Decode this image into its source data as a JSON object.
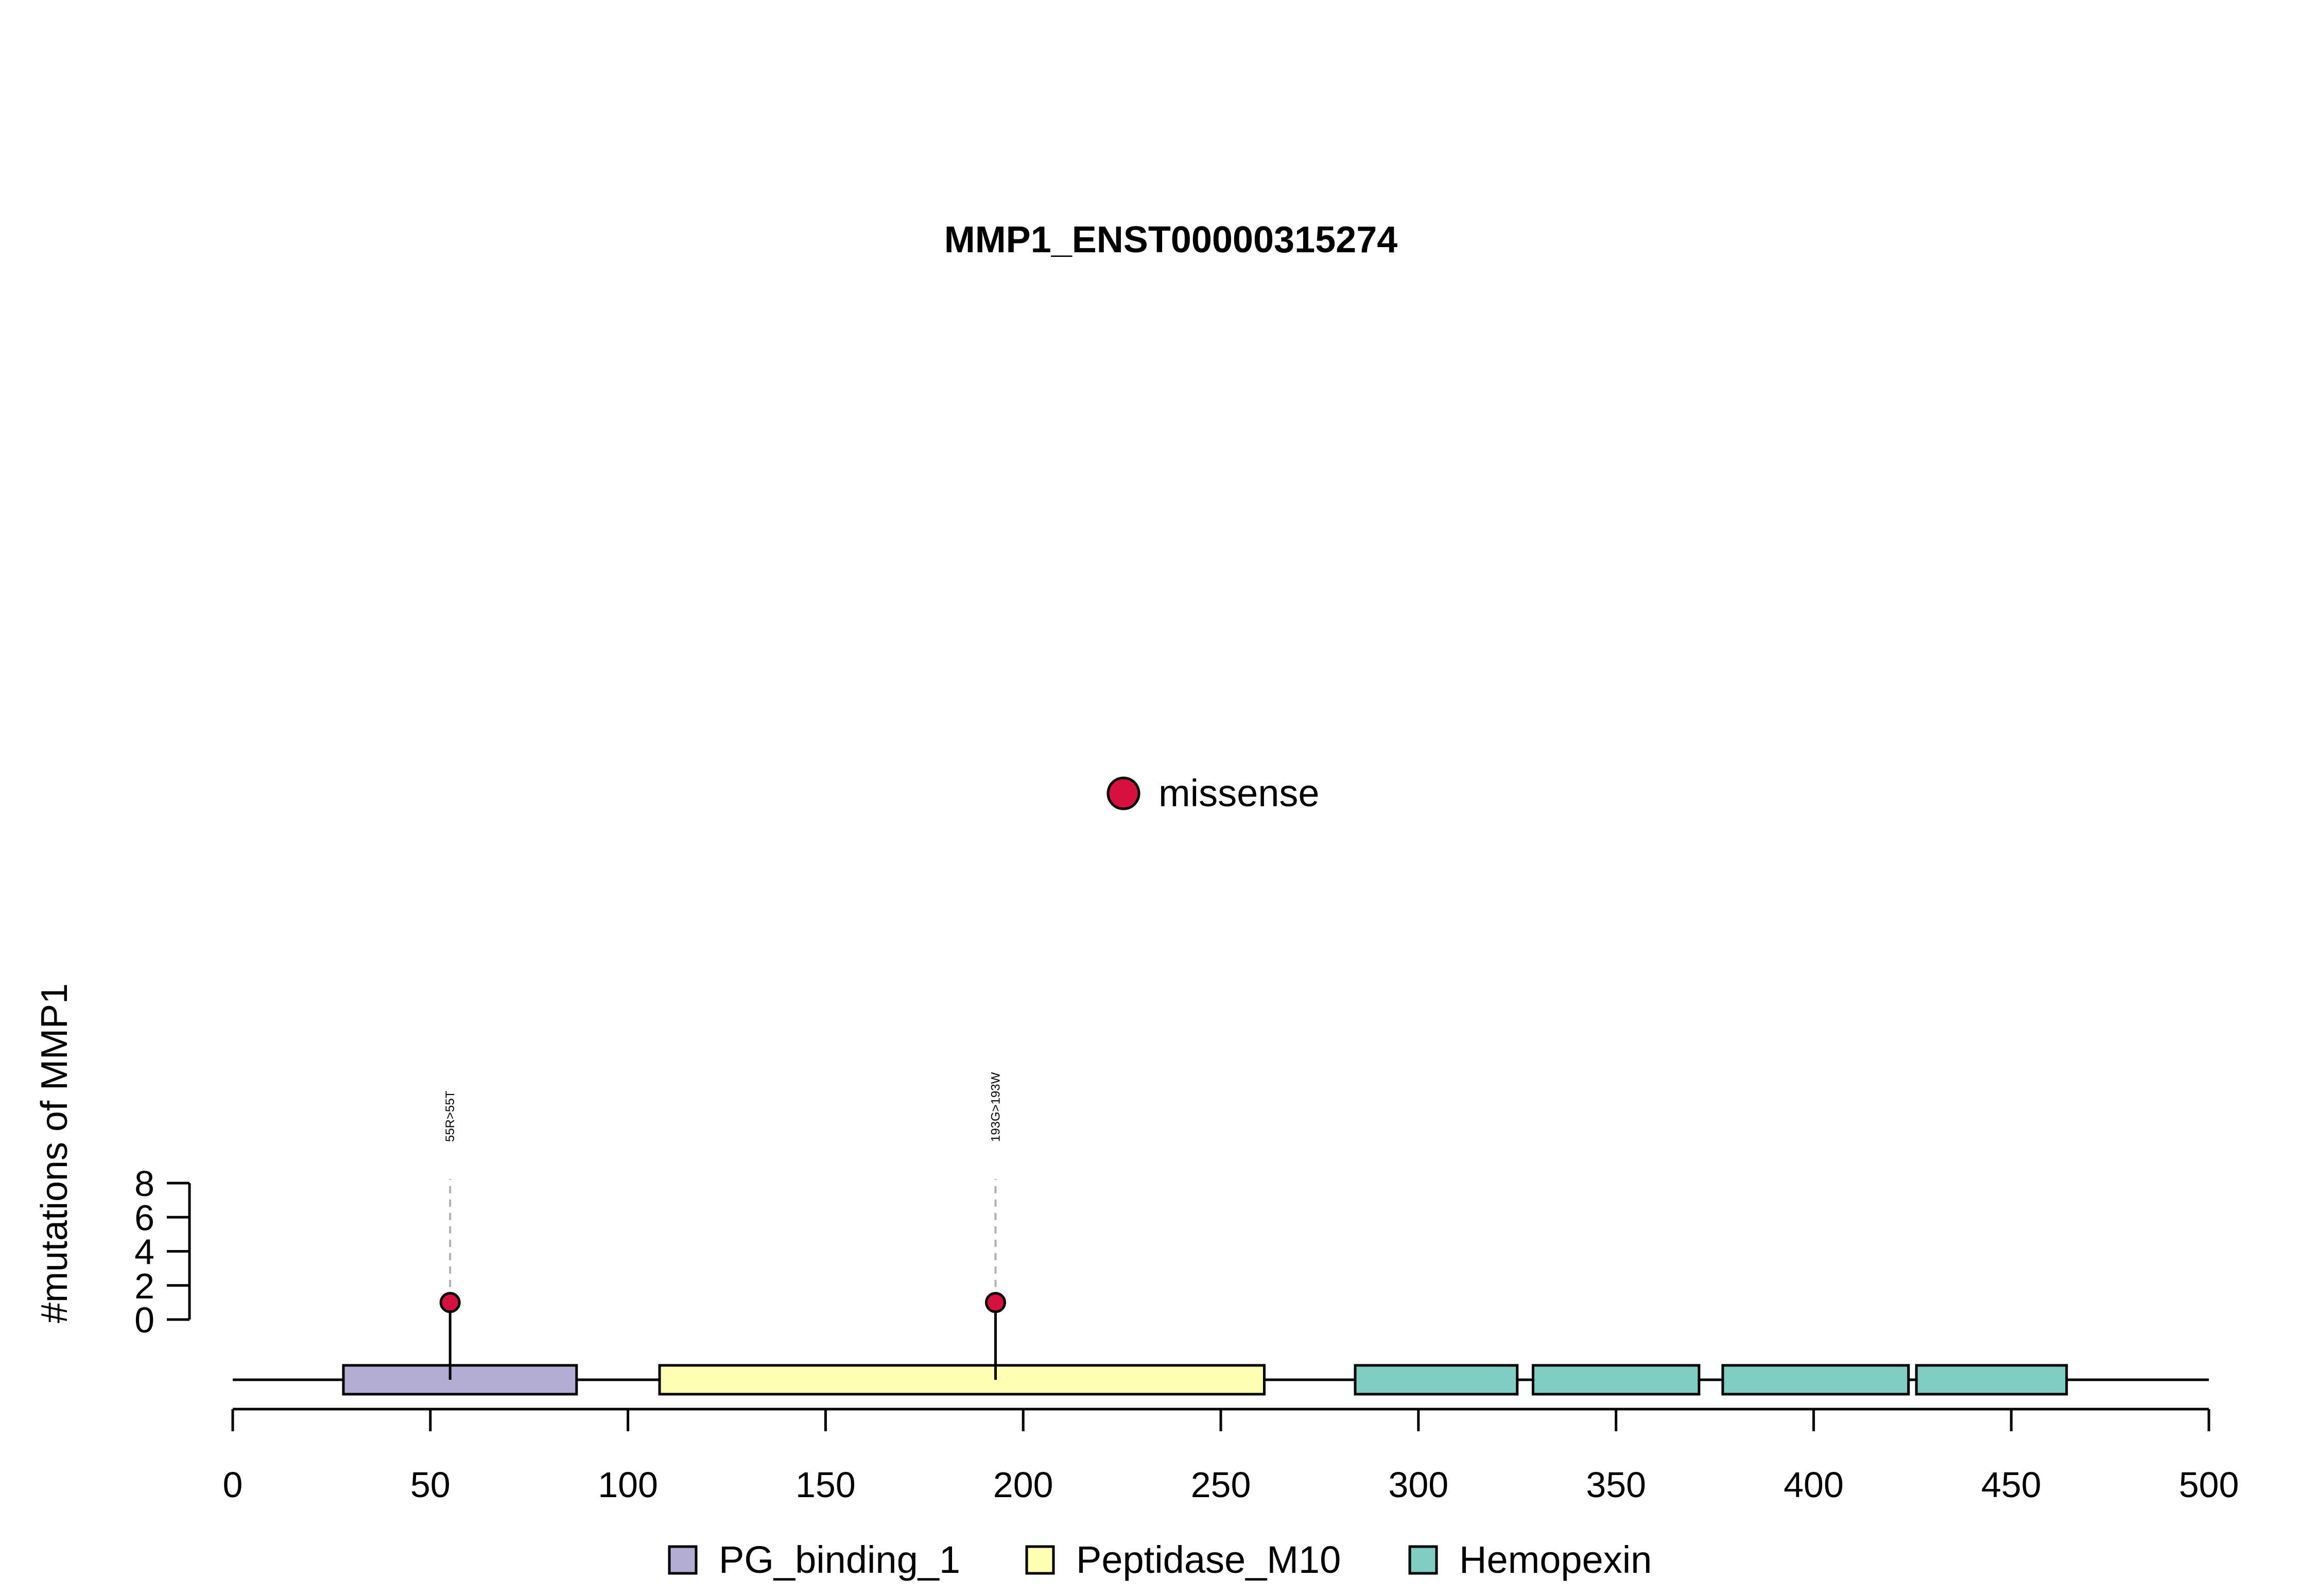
{
  "chart_data": {
    "type": "lollipop",
    "title": "MMP1_ENST00000315274",
    "ylabel": "#mutations of MMP1",
    "xlabel": "",
    "xlim": [
      0,
      500
    ],
    "x_ticks": [
      0,
      50,
      100,
      150,
      200,
      250,
      300,
      350,
      400,
      450,
      500
    ],
    "ylim": [
      0,
      8
    ],
    "y_ticks": [
      0,
      2,
      4,
      6,
      8
    ],
    "protein_length": 469,
    "mutation_legend": [
      {
        "label": "missense",
        "color": "#D6113F"
      }
    ],
    "mutations": [
      {
        "position": 55,
        "count": 1,
        "type": "missense",
        "label": "55R>55T"
      },
      {
        "position": 193,
        "count": 1,
        "type": "missense",
        "label": "193G>193W"
      }
    ],
    "domains": [
      {
        "name": "PG_binding_1",
        "start": 28,
        "end": 87
      },
      {
        "name": "Peptidase_M10",
        "start": 108,
        "end": 261
      },
      {
        "name": "Hemopexin",
        "start": 284,
        "end": 325
      },
      {
        "name": "Hemopexin",
        "start": 329,
        "end": 371
      },
      {
        "name": "Hemopexin",
        "start": 377,
        "end": 424
      },
      {
        "name": "Hemopexin",
        "start": 426,
        "end": 464
      }
    ],
    "domain_legend": [
      {
        "name": "PG_binding_1",
        "color": "#B2ABD2"
      },
      {
        "name": "Peptidase_M10",
        "color": "#FFFFB3"
      },
      {
        "name": "Hemopexin",
        "color": "#80CDC1"
      }
    ]
  }
}
